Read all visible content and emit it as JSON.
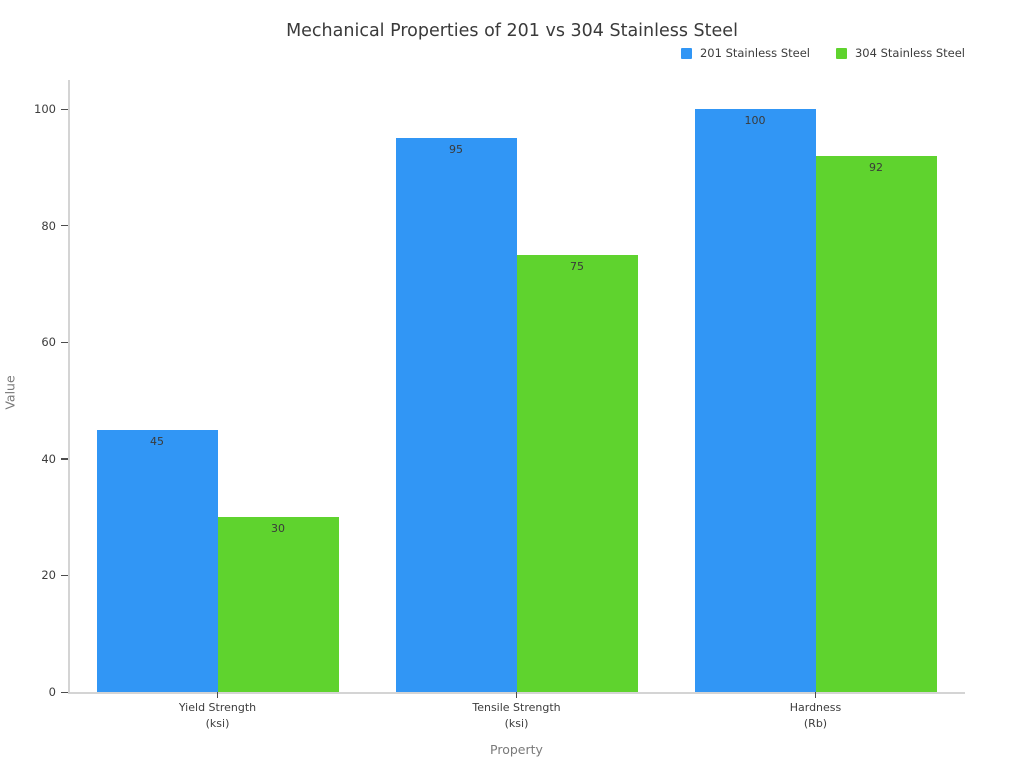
{
  "title": "Mechanical Properties of 201 vs 304 Stainless Steel",
  "legend": {
    "items": [
      {
        "label": "201 Stainless Steel",
        "color": "#3196F5"
      },
      {
        "label": "304 Stainless Steel",
        "color": "#5FD32E"
      }
    ]
  },
  "chart_data": {
    "type": "bar",
    "title": "Mechanical Properties of 201 vs 304 Stainless Steel",
    "categories": [
      "Yield Strength\n(ksi)",
      "Tensile Strength\n(ksi)",
      "Hardness\n(Rb)"
    ],
    "series": [
      {
        "name": "201 Stainless Steel",
        "color": "#3196F5",
        "values": [
          45,
          95,
          100
        ]
      },
      {
        "name": "304 Stainless Steel",
        "color": "#5FD32E",
        "values": [
          30,
          75,
          92
        ]
      }
    ],
    "xlabel": "Property",
    "ylabel": "Value",
    "ylim": [
      0,
      105
    ],
    "yticks": [
      0,
      20,
      40,
      60,
      80,
      100
    ],
    "grid": false,
    "legend_position": "top-right",
    "bar_value_labels": true,
    "bar_value_label_position": "inside-top"
  }
}
